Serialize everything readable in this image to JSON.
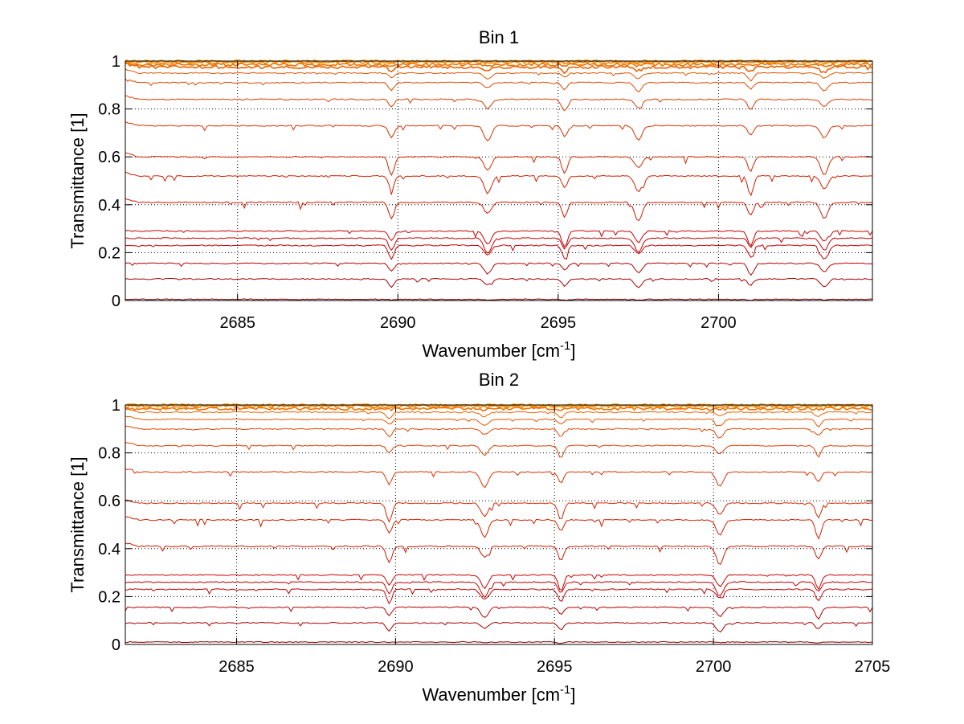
{
  "chart_data": [
    {
      "type": "line",
      "title": "Bin 1",
      "xlabel": "Wavenumber [cm",
      "xlabel_sup": "-1",
      "xlabel_end": "]",
      "ylabel": "Transmittance [1]",
      "xlim": [
        2681.5,
        2704.8
      ],
      "ylim": [
        0,
        1
      ],
      "xticks": [
        "2685",
        "2690",
        "2695",
        "2700"
      ],
      "yticks": [
        "0",
        "0.2",
        "0.4",
        "0.6",
        "0.8",
        "1"
      ],
      "grid": true,
      "absorption_lines": [
        2689.8,
        2692.8,
        2695.2,
        2697.5,
        2701.0,
        2703.3
      ],
      "series_baselines": [
        0.005,
        0.09,
        0.155,
        0.23,
        0.26,
        0.29,
        0.41,
        0.52,
        0.6,
        0.73,
        0.84,
        0.91,
        0.95,
        0.975,
        0.985,
        0.995,
        1.0
      ],
      "series_colors": [
        "#8b0000",
        "#a30000",
        "#b30000",
        "#bf0000",
        "#c40000",
        "#c80000",
        "#cc1a00",
        "#d02000",
        "#d42800",
        "#d83300",
        "#dc3d00",
        "#e04800",
        "#e55500",
        "#ea6200",
        "#f07000",
        "#f58200",
        "#fa9400"
      ]
    },
    {
      "type": "line",
      "title": "Bin 2",
      "xlabel": "Wavenumber [cm",
      "xlabel_sup": "-1",
      "xlabel_end": "]",
      "ylabel": "Transmittance [1]",
      "xlim": [
        2681.5,
        2705
      ],
      "ylim": [
        0,
        1
      ],
      "xticks": [
        "2685",
        "2690",
        "2695",
        "2700",
        "2705"
      ],
      "yticks": [
        "0",
        "0.2",
        "0.4",
        "0.6",
        "0.8",
        "1"
      ],
      "grid": true,
      "absorption_lines": [
        2689.8,
        2692.8,
        2695.2,
        2700.2,
        2703.3
      ],
      "series_baselines": [
        0.01,
        0.09,
        0.155,
        0.23,
        0.26,
        0.29,
        0.41,
        0.52,
        0.59,
        0.72,
        0.83,
        0.9,
        0.94,
        0.97,
        0.985,
        0.995,
        1.0
      ],
      "series_colors": [
        "#8b0000",
        "#a30000",
        "#b30000",
        "#bf0000",
        "#c40000",
        "#c80000",
        "#cc1a00",
        "#d02000",
        "#d42800",
        "#d83300",
        "#dc3d00",
        "#e04800",
        "#e55500",
        "#ea6200",
        "#f07000",
        "#f58200",
        "#fa9400"
      ]
    }
  ]
}
